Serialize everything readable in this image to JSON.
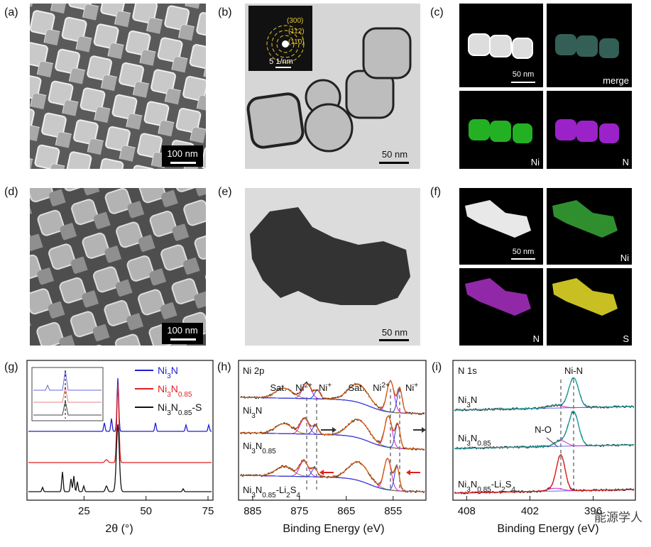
{
  "figure": {
    "a": {
      "label": "(a)",
      "scale_bar": "100 nm"
    },
    "b": {
      "label": "(b)",
      "scale_bar": "50 nm",
      "inset_rings": [
        "(300)",
        "(112)",
        "(110)"
      ],
      "inset_scale_bar": "5 1/nm"
    },
    "c": {
      "label": "(c)",
      "scale_bar": "50 nm",
      "tiles": [
        "merge",
        "Ni",
        "N"
      ]
    },
    "d": {
      "label": "(d)",
      "scale_bar": "100 nm"
    },
    "e": {
      "label": "(e)",
      "scale_bar": "50 nm"
    },
    "f": {
      "label": "(f)",
      "scale_bar": "50 nm",
      "tiles": [
        "Ni",
        "N",
        "S"
      ]
    },
    "g": {
      "label": "(g)",
      "xlabel": "2θ (°)",
      "xlim": [
        2,
        77
      ],
      "xticks": [
        25,
        50,
        75
      ],
      "legend": [
        {
          "name": [
            "Ni",
            "3",
            "N"
          ],
          "color": "#1f1fd0"
        },
        {
          "name": [
            "Ni",
            "3",
            "N",
            "0.85"
          ],
          "color": "#e02020"
        },
        {
          "name": [
            "Ni",
            "3",
            "N",
            "0.85",
            "-S"
          ],
          "color": "#111111"
        }
      ]
    },
    "h": {
      "label": "(h)",
      "region": "Ni 2p",
      "xlabel": "Binding Energy (eV)",
      "xlim": [
        888,
        848
      ],
      "xticks": [
        885,
        875,
        865,
        855
      ],
      "samples": [
        [
          "Ni",
          "3",
          "N"
        ],
        [
          "Ni",
          "3",
          "N",
          "0.85"
        ],
        [
          "Ni",
          "3",
          "N",
          "0.85",
          "-Li",
          "2",
          "S",
          "4"
        ]
      ],
      "peaks": [
        [
          "Sat."
        ],
        [
          "Ni",
          "2+"
        ],
        [
          "Ni",
          "+"
        ],
        [
          "Sat."
        ],
        [
          "Ni",
          "2+"
        ],
        [
          "Ni",
          "+"
        ]
      ]
    },
    "i": {
      "label": "(i)",
      "region": "N 1s",
      "xlabel": "Binding Energy (eV)",
      "xlim": [
        409.3,
        392
      ],
      "xticks": [
        408,
        402,
        396
      ],
      "samples": [
        [
          "Ni",
          "3",
          "N"
        ],
        [
          "Ni",
          "3",
          "N",
          "0.85"
        ],
        [
          "Ni",
          "3",
          "N",
          "0.85",
          "-Li",
          "2",
          "S",
          "4"
        ]
      ],
      "peaks": [
        "Ni-N",
        "N-O"
      ]
    },
    "watermark": "能源学人"
  }
}
